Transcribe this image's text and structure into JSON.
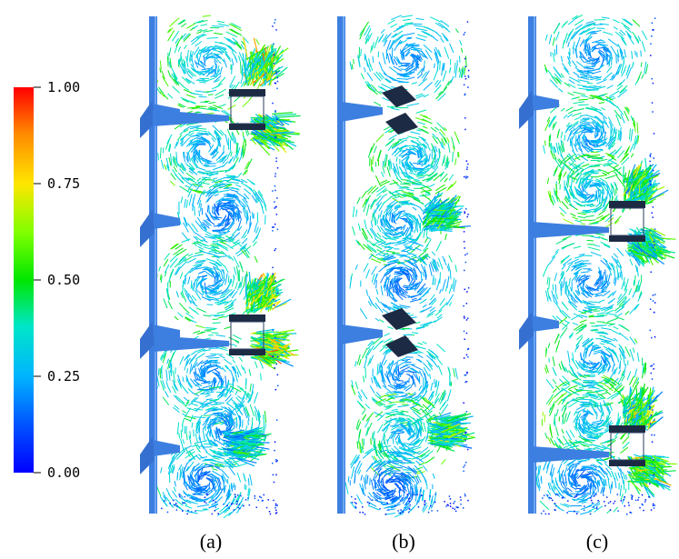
{
  "colorbar": {
    "ticks": [
      "1.00",
      "0.75",
      "0.50",
      "0.25",
      "0.00"
    ],
    "tick_values": [
      1.0,
      0.75,
      0.5,
      0.25,
      0.0
    ],
    "colors": [
      "#ff0000",
      "#ff8a00",
      "#ffe600",
      "#7dff00",
      "#00e600",
      "#00e6c8",
      "#00b4ff",
      "#0050ff",
      "#0000ff"
    ]
  },
  "panels": [
    {
      "label": "(a)",
      "vessel": "stirred-tank",
      "impellers": 4
    },
    {
      "label": "(b)",
      "vessel": "stirred-tank",
      "impellers": 4
    },
    {
      "label": "(c)",
      "vessel": "stirred-tank",
      "impellers": 4
    }
  ],
  "colors": {
    "shaft": "#3d7fe0",
    "blade": "#1d2a44",
    "velocity_low": "#0000ff",
    "velocity_high": "#ff0000"
  }
}
